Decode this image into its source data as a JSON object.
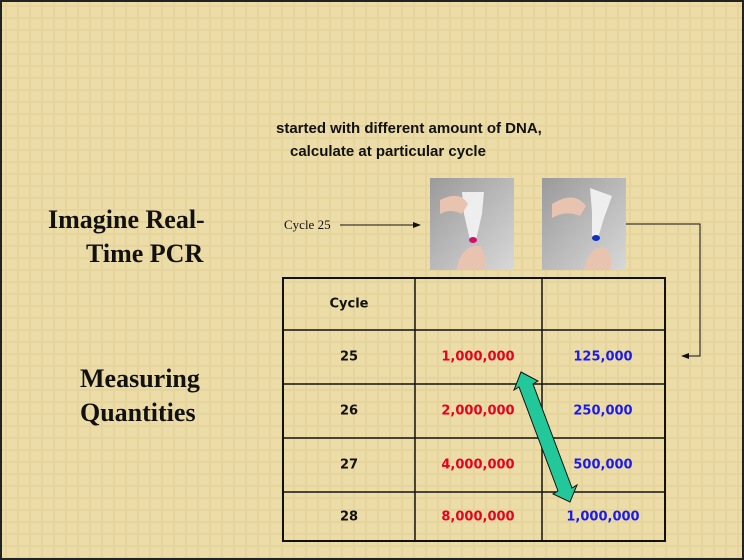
{
  "slide": {
    "note_lines": [
      "started with different amount of DNA,",
      "calculate at particular cycle"
    ],
    "heading_lines": [
      "Imagine Real-",
      "Time PCR"
    ],
    "subheading_lines": [
      "Measuring",
      "Quantities"
    ],
    "cycle_label": "Cycle 25",
    "table": {
      "header": "Cycle",
      "rows": [
        [
          "25",
          "1,000,000",
          "125,000"
        ],
        [
          "26",
          "2,000,000",
          "250,000"
        ],
        [
          "27",
          "4,000,000",
          "500,000"
        ],
        [
          "28",
          "8,000,000",
          "1,000,000"
        ]
      ]
    }
  }
}
